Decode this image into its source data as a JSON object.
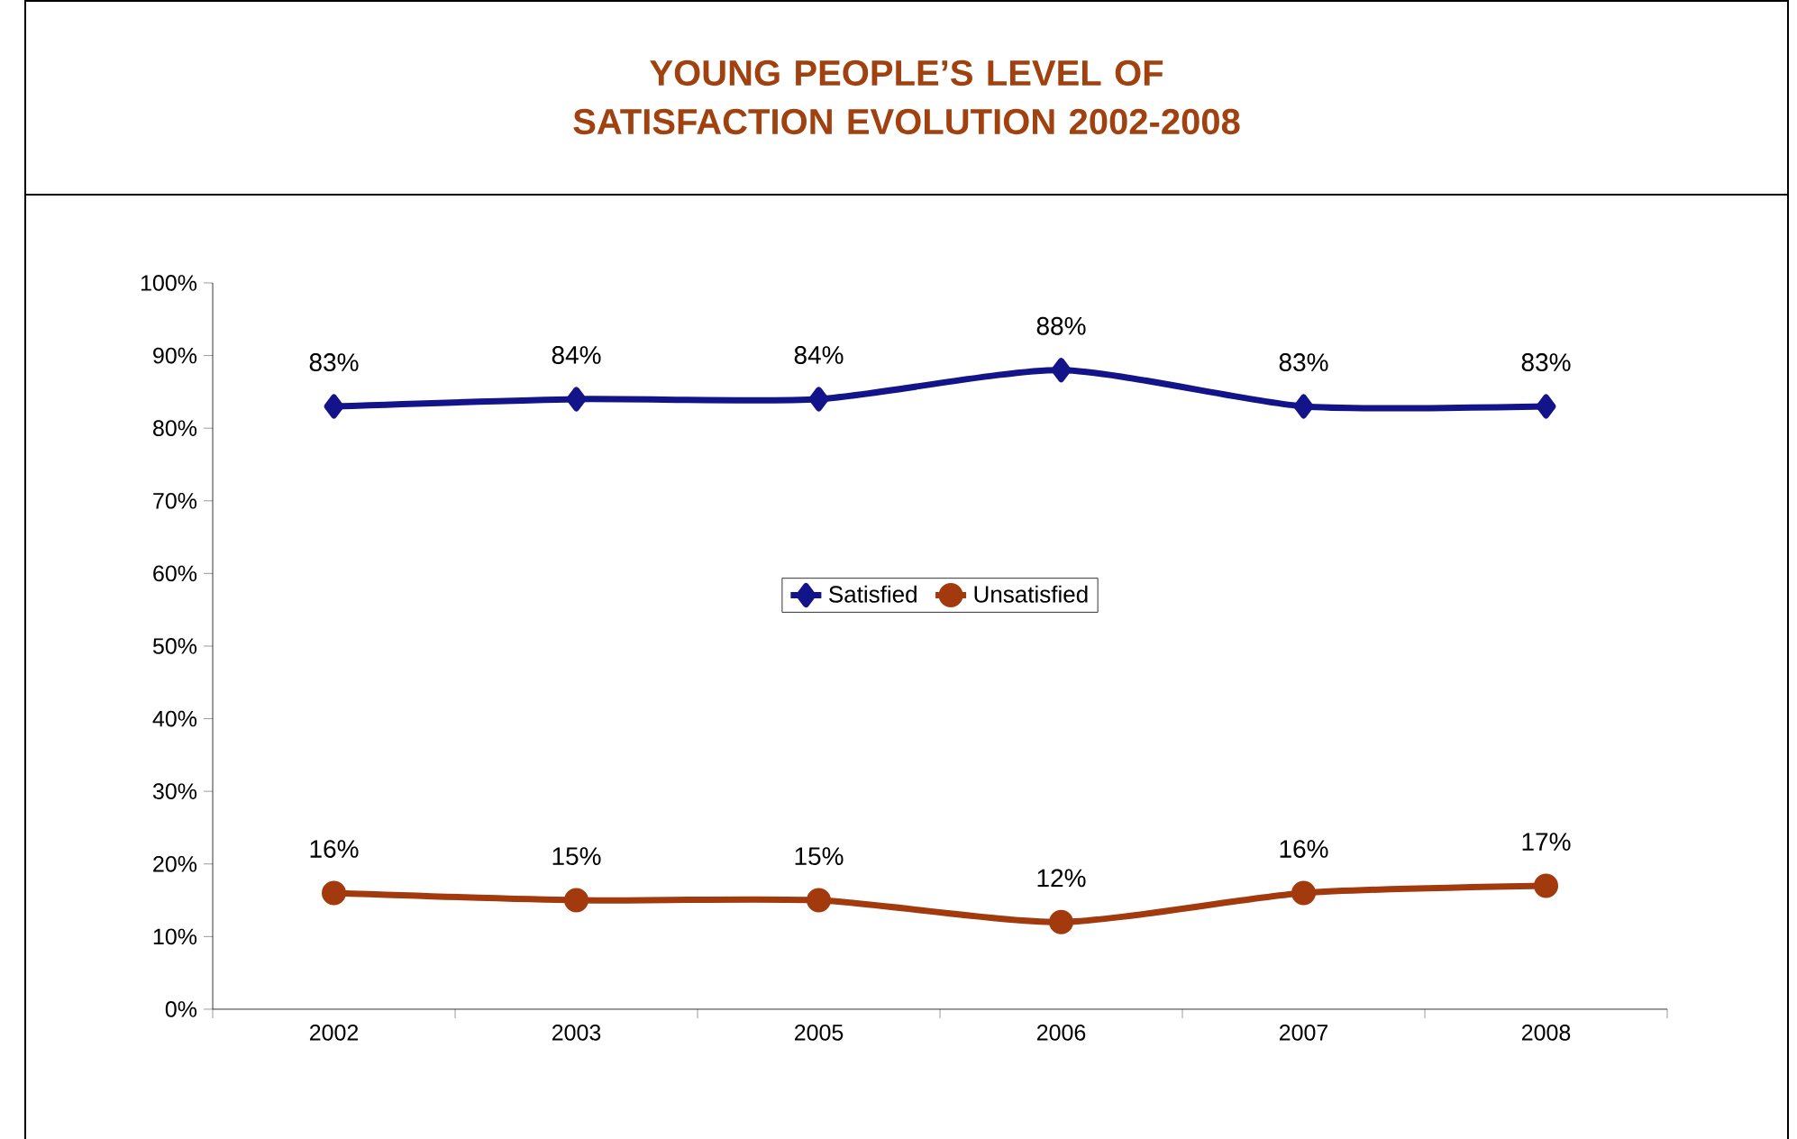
{
  "chart_data": {
    "type": "line",
    "title": "YOUNG PEOPLE’S LEVEL OF SATISFACTION EVOLUTION 2002-2008",
    "categories": [
      "2002",
      "2003",
      "2005",
      "2006",
      "2007",
      "2008"
    ],
    "series": [
      {
        "name": "Satisfied",
        "color": "#14148a",
        "marker": "diamond",
        "values": [
          83,
          84,
          84,
          88,
          83,
          83
        ],
        "value_labels": [
          "83%",
          "84%",
          "84%",
          "88%",
          "83%",
          "83%"
        ]
      },
      {
        "name": "Unsatisfied",
        "color": "#a33a0d",
        "marker": "circle",
        "values": [
          16,
          15,
          15,
          12,
          16,
          17
        ],
        "value_labels": [
          "16%",
          "15%",
          "15%",
          "12%",
          "16%",
          "17%"
        ]
      }
    ],
    "ylim": [
      0,
      100
    ],
    "yticks": [
      {
        "value": 0,
        "label": "0%"
      },
      {
        "value": 10,
        "label": "10%"
      },
      {
        "value": 20,
        "label": "20%"
      },
      {
        "value": 30,
        "label": "30%"
      },
      {
        "value": 40,
        "label": "40%"
      },
      {
        "value": 50,
        "label": "50%"
      },
      {
        "value": 60,
        "label": "60%"
      },
      {
        "value": 70,
        "label": "70%"
      },
      {
        "value": 80,
        "label": "80%"
      },
      {
        "value": 90,
        "label": "90%"
      },
      {
        "value": 100,
        "label": "100%"
      }
    ],
    "legend": "center",
    "grid": false
  }
}
